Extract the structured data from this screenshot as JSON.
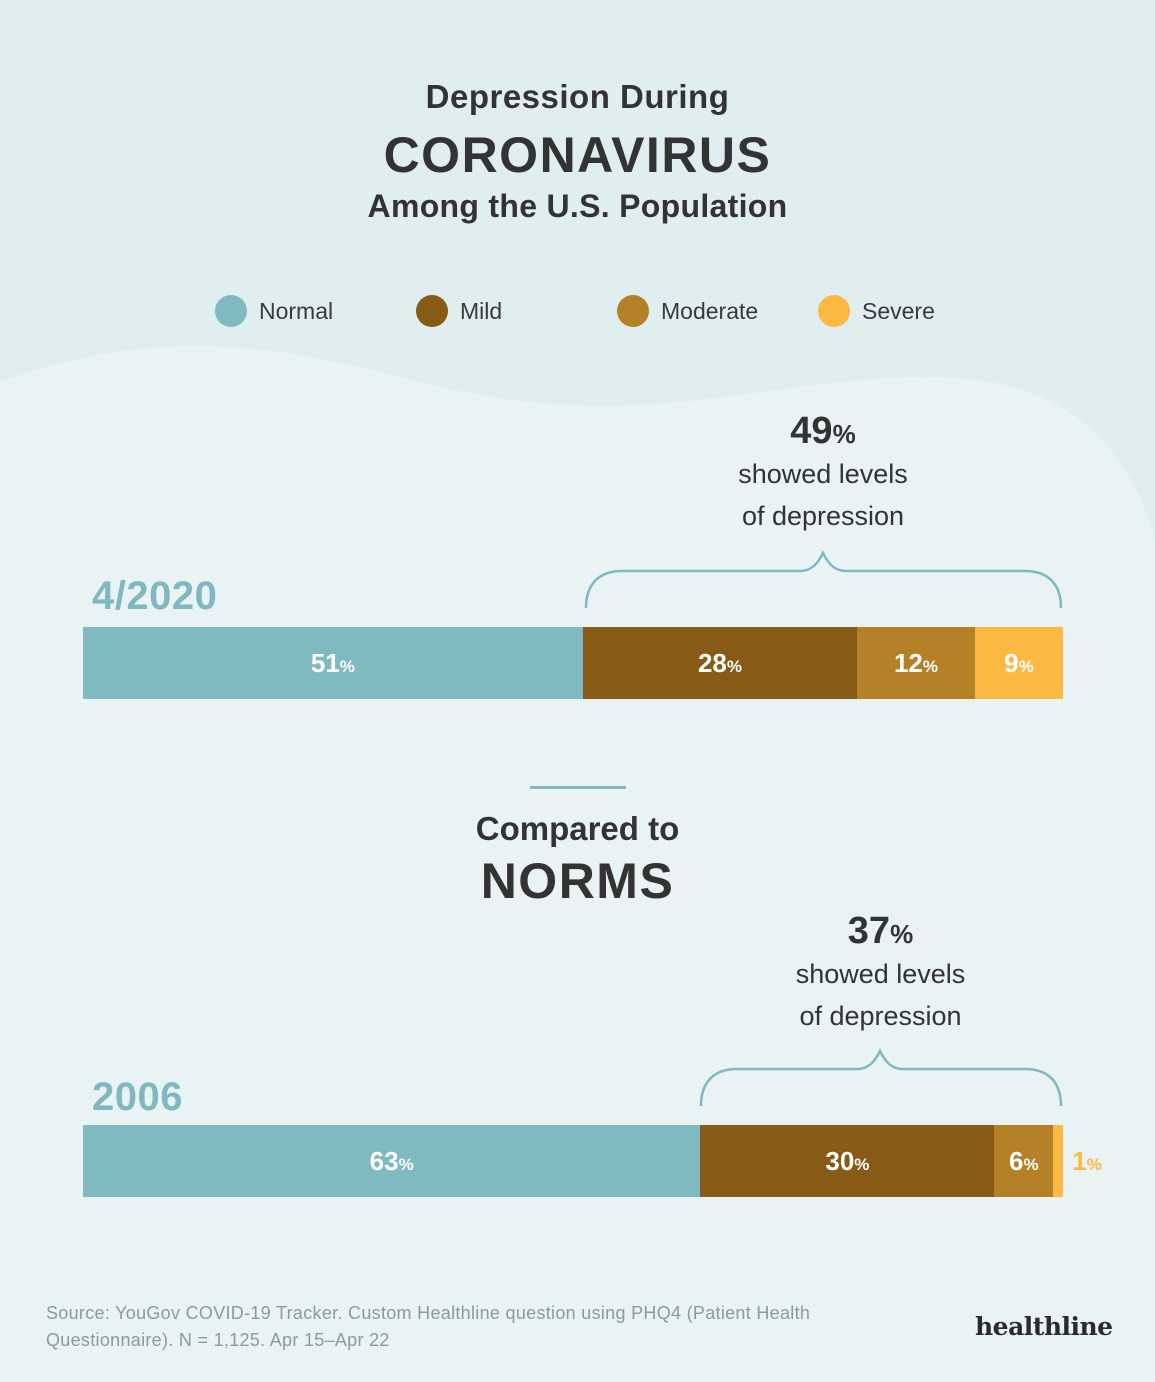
{
  "title": {
    "line1": "Depression During",
    "line2": "CORONAVIRUS",
    "line3": "Among the U.S. Population"
  },
  "colors": {
    "normal": "#81b9c1",
    "mild": "#875a16",
    "moderate": "#b58126",
    "severe": "#fbb843",
    "year_text": "#7fb8c0",
    "background": "#e0eef0",
    "wave": "#eaf3f4"
  },
  "legend": [
    {
      "label": "Normal",
      "color": "#81b9c1"
    },
    {
      "label": "Mild",
      "color": "#875a16"
    },
    {
      "label": "Moderate",
      "color": "#b58126"
    },
    {
      "label": "Severe",
      "color": "#fbb843"
    }
  ],
  "chart_data": [
    {
      "type": "bar",
      "orientation": "horizontal",
      "stacked": true,
      "category": "4/2020",
      "series": [
        {
          "name": "Normal",
          "value": 51
        },
        {
          "name": "Mild",
          "value": 28
        },
        {
          "name": "Moderate",
          "value": 12
        },
        {
          "name": "Severe",
          "value": 9
        }
      ],
      "bracket_value": "49",
      "bracket_text": [
        "showed levels",
        "of depression"
      ]
    },
    {
      "type": "bar",
      "orientation": "horizontal",
      "stacked": true,
      "category": "2006",
      "series": [
        {
          "name": "Normal",
          "value": 63
        },
        {
          "name": "Mild",
          "value": 30
        },
        {
          "name": "Moderate",
          "value": 6
        },
        {
          "name": "Severe",
          "value": 1
        }
      ],
      "bracket_value": "37",
      "bracket_text": [
        "showed levels",
        "of depression"
      ]
    }
  ],
  "comparison": {
    "line1": "Compared to",
    "line2": "NORMS"
  },
  "percent_sign": "%",
  "source": "Source: YouGov COVID-19 Tracker. Custom Healthline question using PHQ4 (Patient Health Questionnaire). N = 1,125. Apr 15–Apr 22",
  "logo": "healthline"
}
